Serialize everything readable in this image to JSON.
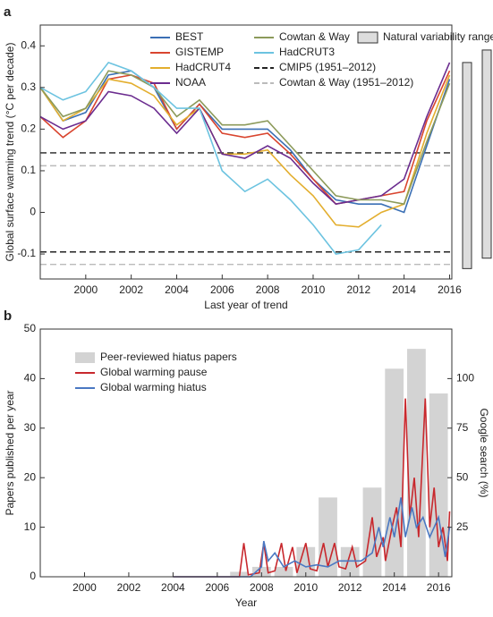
{
  "chart_data": [
    {
      "type": "line",
      "panel": "a",
      "x_label": "Last year of trend",
      "y_label": "Global surface warming trend (°C per decade)",
      "x": [
        1998,
        1999,
        2000,
        2001,
        2002,
        2003,
        2004,
        2005,
        2006,
        2007,
        2008,
        2009,
        2010,
        2011,
        2012,
        2013,
        2014,
        2015,
        2016
      ],
      "xlim": [
        1998,
        2016.1
      ],
      "xticks": [
        2000,
        2002,
        2004,
        2006,
        2008,
        2010,
        2012,
        2014,
        2016
      ],
      "ylim": [
        -0.16,
        0.45
      ],
      "yticks": [
        -0.1,
        0,
        0.1,
        0.2,
        0.3,
        0.4
      ],
      "series": [
        {
          "name": "BEST",
          "color": "#3a6fb5",
          "values": [
            0.3,
            0.22,
            0.24,
            0.33,
            0.34,
            0.3,
            0.2,
            0.26,
            0.2,
            0.2,
            0.2,
            0.15,
            0.08,
            0.03,
            0.02,
            0.02,
            0.0,
            0.16,
            0.32
          ]
        },
        {
          "name": "GISTEMP",
          "color": "#d9452f",
          "values": [
            0.23,
            0.18,
            0.22,
            0.32,
            0.33,
            0.31,
            0.2,
            0.26,
            0.19,
            0.18,
            0.19,
            0.14,
            0.08,
            0.02,
            0.03,
            0.04,
            0.05,
            0.22,
            0.34
          ]
        },
        {
          "name": "HadCRUT4",
          "color": "#e3ae2e",
          "values": [
            0.3,
            0.22,
            0.25,
            0.32,
            0.31,
            0.28,
            0.21,
            0.25,
            0.14,
            0.14,
            0.15,
            0.09,
            0.04,
            -0.03,
            -0.035,
            0.0,
            0.02,
            0.19,
            0.33
          ]
        },
        {
          "name": "NOAA",
          "color": "#6b2c8f",
          "values": [
            0.23,
            0.2,
            0.22,
            0.29,
            0.28,
            0.25,
            0.19,
            0.25,
            0.14,
            0.13,
            0.16,
            0.13,
            0.07,
            0.02,
            0.03,
            0.04,
            0.08,
            0.23,
            0.36
          ]
        },
        {
          "name": "Cowtan & Way",
          "color": "#8c9a5a",
          "values": [
            0.3,
            0.23,
            0.25,
            0.34,
            0.33,
            0.3,
            0.23,
            0.27,
            0.21,
            0.21,
            0.22,
            0.16,
            0.1,
            0.04,
            0.03,
            0.03,
            0.02,
            0.17,
            0.31
          ]
        },
        {
          "name": "HadCRUT3",
          "color": "#6cc3e0",
          "values": [
            0.3,
            0.27,
            0.29,
            0.36,
            0.34,
            0.3,
            0.25,
            0.25,
            0.1,
            0.05,
            0.08,
            0.03,
            -0.03,
            -0.1,
            -0.09,
            -0.03,
            null,
            null,
            null
          ]
        }
      ],
      "reference_lines": [
        {
          "name": "CMIP5 (1951–2012)",
          "color": "#222222",
          "values": [
            0.143,
            -0.095
          ]
        },
        {
          "name": "Cowtan & Way (1951–2012)",
          "color": "#bbbbbb",
          "values": [
            0.112,
            -0.125
          ]
        }
      ],
      "ranges": {
        "name": "Natural variability range",
        "color": "#dddddd",
        "values": [
          [
            -0.135,
            0.36
          ],
          [
            -0.11,
            0.39
          ]
        ]
      }
    },
    {
      "type": "bar",
      "panel": "b",
      "x_label": "Year",
      "y_label": "Papers published per year",
      "y2_label": "Google search (%)",
      "xlim": [
        1998,
        2016.6
      ],
      "xticks": [
        2000,
        2002,
        2004,
        2006,
        2008,
        2010,
        2012,
        2014,
        2016
      ],
      "ylim": [
        0,
        50
      ],
      "yticks": [
        0,
        10,
        20,
        30,
        40,
        50
      ],
      "y2lim": [
        0,
        125
      ],
      "y2ticks": [
        25,
        50,
        75,
        100
      ],
      "series": [
        {
          "name": "Peer-reviewed hiatus papers",
          "color": "#d3d3d3",
          "type": "bar",
          "x": [
            2007,
            2008,
            2009,
            2010,
            2011,
            2012,
            2013,
            2014,
            2015,
            2016
          ],
          "values": [
            1,
            2,
            2,
            6,
            16,
            6,
            18,
            42,
            46,
            37
          ]
        },
        {
          "name": "Global warming pause",
          "color": "#c8282d",
          "type": "line",
          "axis": "y2",
          "x": [
            2004,
            2007,
            2007.2,
            2007.4,
            2007.9,
            2008.1,
            2008.3,
            2008.6,
            2008.9,
            2009.1,
            2009.4,
            2009.6,
            2010.0,
            2010.2,
            2010.5,
            2010.8,
            2011.0,
            2011.3,
            2011.5,
            2011.8,
            2012.1,
            2012.3,
            2012.7,
            2013.0,
            2013.2,
            2013.5,
            2013.6,
            2013.9,
            2014.1,
            2014.3,
            2014.5,
            2014.7,
            2014.9,
            2015.1,
            2015.4,
            2015.6,
            2015.8,
            2016.0,
            2016.2,
            2016.4,
            2016.5
          ],
          "values": [
            0,
            0,
            17,
            1,
            2,
            17,
            2,
            3,
            17,
            3,
            15,
            2,
            17,
            4,
            3,
            17,
            5,
            17,
            5,
            4,
            15,
            5,
            8,
            30,
            10,
            20,
            8,
            25,
            35,
            15,
            90,
            30,
            50,
            20,
            90,
            25,
            45,
            15,
            25,
            8,
            33
          ]
        },
        {
          "name": "Global warming hiatus",
          "color": "#4a78c2",
          "type": "line",
          "axis": "y2",
          "x": [
            2004,
            2007.5,
            2008,
            2008.1,
            2008.3,
            2008.6,
            2009,
            2009.5,
            2010,
            2010.5,
            2011,
            2011.5,
            2012,
            2012.5,
            2013,
            2013.3,
            2013.5,
            2013.8,
            2014,
            2014.3,
            2014.5,
            2014.8,
            2015,
            2015.3,
            2015.6,
            2016,
            2016.3,
            2016.5
          ],
          "values": [
            0,
            0,
            5,
            18,
            8,
            12,
            5,
            8,
            5,
            6,
            5,
            8,
            8,
            8,
            12,
            25,
            15,
            30,
            20,
            40,
            20,
            35,
            25,
            30,
            20,
            30,
            10,
            25
          ]
        }
      ]
    }
  ]
}
